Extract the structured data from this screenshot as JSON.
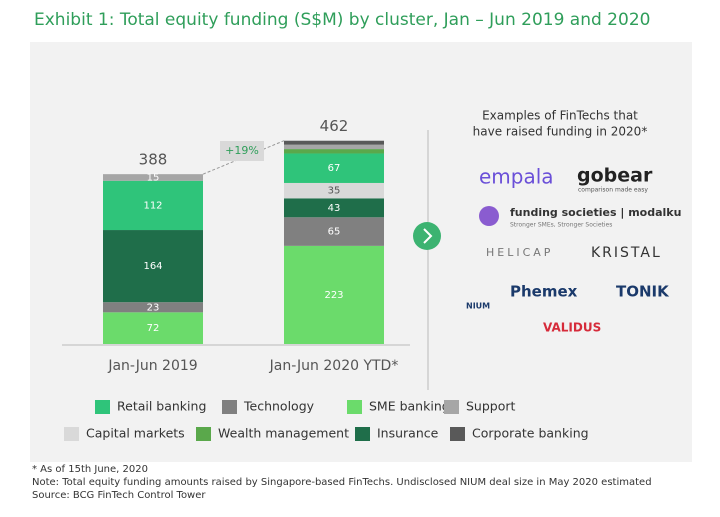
{
  "chart_data": {
    "type": "stacked-bar",
    "title": "Exhibit 1: Total equity funding (S$M) by cluster, Jan – Jun 2019 and 2020",
    "categories": [
      "Jan-Jun 2019",
      "Jan-Jun 2020 YTD*"
    ],
    "totals": [
      388,
      462
    ],
    "growth_label": "+19%",
    "series": [
      {
        "name": "Retail banking",
        "color": "#2fc47a",
        "values": [
          112,
          67
        ]
      },
      {
        "name": "Technology",
        "color": "#808080",
        "values": [
          23,
          65
        ]
      },
      {
        "name": "SME banking",
        "color": "#6bdb6b",
        "values": [
          72,
          223
        ]
      },
      {
        "name": "Support",
        "color": "#a6a6a6",
        "values": [
          15,
          10
        ]
      },
      {
        "name": "Capital markets",
        "color": "#d9d9d9",
        "values": [
          null,
          35
        ]
      },
      {
        "name": "Wealth management",
        "color": "#5aa84b",
        "values": [
          null,
          10
        ]
      },
      {
        "name": "Insurance",
        "color": "#1f6e4a",
        "values": [
          164,
          43
        ]
      },
      {
        "name": "Corporate banking",
        "color": "#595959",
        "values": [
          null,
          9
        ]
      }
    ]
  },
  "panel": {
    "heading": [
      "Examples of FinTechs that",
      "have raised funding in 2020*"
    ],
    "logos": [
      "empala",
      "gobear",
      "comparison made easy",
      "funding societies | modalku",
      "Stronger SMEs, Stronger Societies",
      "HELICAP",
      "KRISTAL",
      "NIUM",
      "Phemex",
      "TONIK",
      "VALIDUS"
    ]
  },
  "footnotes": [
    "* As of 15th June, 2020",
    "Note: Total equity funding amounts raised by Singapore-based FinTechs. Undisclosed NIUM deal size in May 2020 estimated",
    "Source: BCG FinTech Control Tower"
  ]
}
